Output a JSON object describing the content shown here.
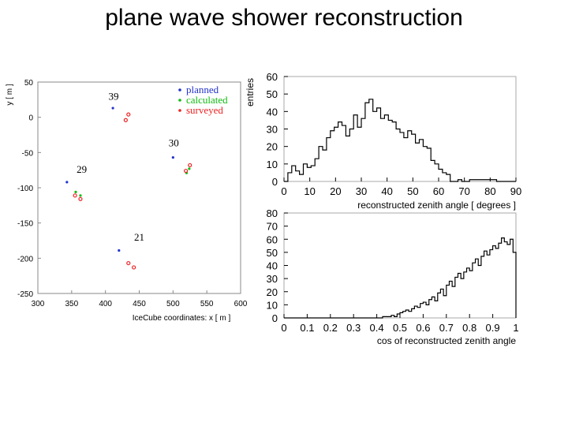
{
  "title": "plane wave shower reconstruction",
  "chart_data": [
    {
      "type": "scatter",
      "xlabel": "IceCube coordinates: x [ m ]",
      "ylabel": "y [ m ]",
      "xlim": [
        300,
        600
      ],
      "ylim": [
        -250,
        50
      ],
      "xticks": [
        "300",
        "350",
        "400",
        "450",
        "500",
        "550",
        "600"
      ],
      "yticks": [
        "50",
        "0",
        "-50",
        "-100",
        "-150",
        "-200",
        "-250"
      ],
      "legend_position": "top-right",
      "legend": [
        {
          "label": "planned",
          "color": "#2233cc"
        },
        {
          "label": "calculated",
          "color": "#11bb11"
        },
        {
          "label": "surveyed",
          "color": "#ee2222"
        }
      ],
      "annotations": [
        {
          "text": "39",
          "x": 412,
          "y": 25
        },
        {
          "text": "30",
          "x": 501,
          "y": -41
        },
        {
          "text": "29",
          "x": 365,
          "y": -79
        },
        {
          "text": "21",
          "x": 450,
          "y": -175
        }
      ],
      "series": [
        {
          "name": "planned",
          "points": [
            [
              411,
              13
            ],
            [
              500,
              -57
            ],
            [
              343,
              -92
            ],
            [
              420,
              -189
            ]
          ]
        },
        {
          "name": "calculated",
          "points": [
            [
              356,
              -106
            ],
            [
              363,
              -111
            ],
            [
              520,
              -79
            ],
            [
              524,
              -73
            ]
          ]
        },
        {
          "name": "surveyed",
          "points": [
            [
              434,
              4
            ],
            [
              430,
              -4
            ],
            [
              355,
              -111
            ],
            [
              363,
              -116
            ],
            [
              519,
              -76
            ],
            [
              525,
              -68
            ],
            [
              434,
              -207
            ],
            [
              442,
              -213
            ]
          ]
        }
      ]
    },
    {
      "type": "histogram",
      "xlabel": "reconstructed zenith angle [ degrees ]",
      "ylabel": "entries",
      "xlim": [
        0,
        90
      ],
      "ylim": [
        0,
        60
      ],
      "xticks": [
        "0",
        "10",
        "20",
        "30",
        "40",
        "50",
        "60",
        "70",
        "80",
        "90"
      ],
      "yticks": [
        "0",
        "10",
        "20",
        "30",
        "40",
        "50",
        "60"
      ],
      "bin_width": 1.5,
      "values": [
        0,
        5,
        9,
        6,
        4,
        10,
        8,
        9,
        13,
        20,
        18,
        25,
        29,
        31,
        34,
        32,
        26,
        30,
        38,
        31,
        36,
        45,
        47,
        40,
        42,
        36,
        38,
        35,
        34,
        30,
        28,
        25,
        29,
        27,
        22,
        24,
        20,
        19,
        12,
        10,
        7,
        5,
        4,
        0,
        0,
        1,
        0,
        0,
        1,
        1,
        1,
        1,
        1,
        1,
        1,
        0,
        0,
        0,
        0,
        0
      ]
    },
    {
      "type": "histogram",
      "xlabel": "cos of reconstructed zenith angle",
      "ylabel": "",
      "xlim": [
        0,
        1
      ],
      "ylim": [
        0,
        80
      ],
      "xticks": [
        "0",
        "0.1",
        "0.2",
        "0.3",
        "0.4",
        "0.5",
        "0.6",
        "0.7",
        "0.8",
        "0.9",
        "1"
      ],
      "yticks": [
        "0",
        "10",
        "20",
        "30",
        "40",
        "50",
        "60",
        "70",
        "80"
      ],
      "bin_width": 0.0125,
      "values": [
        0,
        0,
        0,
        0,
        0,
        0,
        0,
        0,
        0,
        0,
        0,
        0,
        0,
        0,
        0,
        0,
        0,
        0,
        0,
        0,
        0,
        0,
        0,
        0,
        0,
        0,
        0,
        0,
        0,
        0,
        0,
        0,
        0,
        0,
        1,
        1,
        1,
        2,
        1,
        3,
        4,
        5,
        6,
        5,
        7,
        9,
        8,
        11,
        12,
        10,
        14,
        16,
        13,
        19,
        22,
        17,
        25,
        28,
        24,
        31,
        34,
        30,
        35,
        38,
        36,
        42,
        45,
        40,
        47,
        51,
        48,
        52,
        55,
        53,
        57,
        61,
        58,
        56,
        60,
        50
      ]
    }
  ]
}
